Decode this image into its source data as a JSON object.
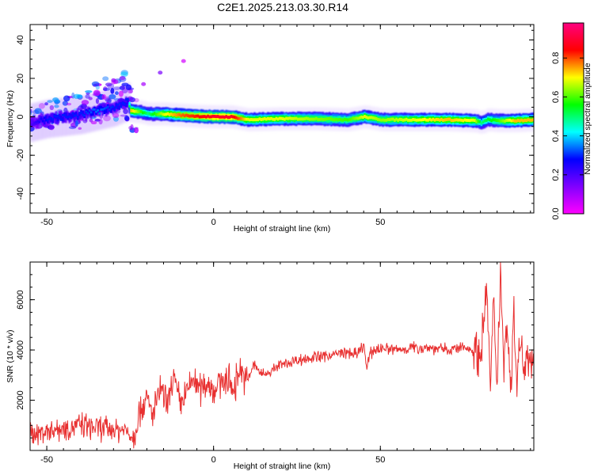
{
  "title": "C2E1.2025.213.03.30.R14",
  "chart_data": [
    {
      "type": "heatmap",
      "xlabel": "Height of straight line (km)",
      "ylabel": "Frequency (Hz)",
      "xlim": [
        -55,
        96
      ],
      "ylim": [
        -50,
        48
      ],
      "xticks": [
        -50,
        0,
        50
      ],
      "yticks": [
        -40,
        -20,
        0,
        20,
        40
      ],
      "colorbar": {
        "label": "Normalized spectral amplitude",
        "range": [
          0.0,
          0.98
        ],
        "ticks": [
          "0.0",
          "0.2",
          "0.4",
          "0.6",
          "0.8"
        ],
        "colormap": [
          "#ff00ff",
          "#8000ff",
          "#0000ff",
          "#00ffff",
          "#00ff00",
          "#ffff00",
          "#ff0000",
          "#ff0080"
        ]
      },
      "ridge": {
        "x": [
          -55,
          -50,
          -45,
          -40,
          -35,
          -30,
          -26,
          -25,
          -22,
          -20,
          -15,
          -10,
          -5,
          0,
          5,
          10,
          20,
          30,
          40,
          45,
          50,
          60,
          70,
          78,
          80,
          82,
          85,
          90,
          96
        ],
        "y": [
          -3,
          -1,
          0,
          1,
          3,
          5,
          8,
          3,
          2.5,
          1.5,
          1.5,
          0.8,
          0.3,
          0,
          0,
          -1.5,
          -1,
          -1,
          -1.5,
          0,
          -1.5,
          -1.5,
          -1.5,
          -2,
          -3,
          -1.5,
          -2,
          -2,
          -1.5
        ],
        "amplitude": [
          0.2,
          0.3,
          0.3,
          0.3,
          0.35,
          0.3,
          0.3,
          0.75,
          0.6,
          0.5,
          0.7,
          0.8,
          0.85,
          0.9,
          0.9,
          0.7,
          0.7,
          0.65,
          0.6,
          0.7,
          0.65,
          0.7,
          0.75,
          0.7,
          0.5,
          0.55,
          0.6,
          0.75,
          0.75
        ]
      }
    },
    {
      "type": "line",
      "xlabel": "Height of straight line (km)",
      "ylabel": "SNR (10 * v/v)",
      "xlim": [
        -55,
        96
      ],
      "ylim": [
        0,
        7500
      ],
      "xticks": [
        -50,
        0,
        50
      ],
      "yticks": [
        2000,
        4000,
        6000
      ],
      "color": "#e83030",
      "series": [
        {
          "x": [
            -55,
            -50,
            -45,
            -40,
            -35,
            -30,
            -26,
            -24,
            -22,
            -20,
            -18,
            -16,
            -14,
            -12,
            -10,
            -8,
            -6,
            -4,
            -2,
            0,
            2,
            4,
            6,
            8,
            10,
            12,
            15,
            20,
            25,
            30,
            35,
            40,
            43,
            45,
            46,
            47,
            50,
            55,
            60,
            65,
            70,
            75,
            78,
            80,
            81,
            82,
            83,
            84,
            85,
            86,
            87,
            88,
            89,
            90,
            91,
            92,
            93,
            94,
            95,
            96
          ],
          "y": [
            600,
            800,
            900,
            1000,
            900,
            850,
            800,
            500,
            1700,
            2000,
            1400,
            2500,
            1700,
            2900,
            1800,
            2300,
            2900,
            2400,
            2800,
            2400,
            2700,
            2900,
            2400,
            3300,
            2700,
            3400,
            3000,
            3400,
            3600,
            3700,
            3800,
            3900,
            3800,
            4200,
            3200,
            3900,
            4100,
            4000,
            4100,
            4100,
            4000,
            4100,
            4000,
            3800,
            5200,
            6500,
            2300,
            6000,
            2700,
            7300,
            3500,
            5300,
            2400,
            5400,
            3000,
            4400,
            3300,
            4100,
            3700,
            3900
          ]
        }
      ]
    }
  ]
}
